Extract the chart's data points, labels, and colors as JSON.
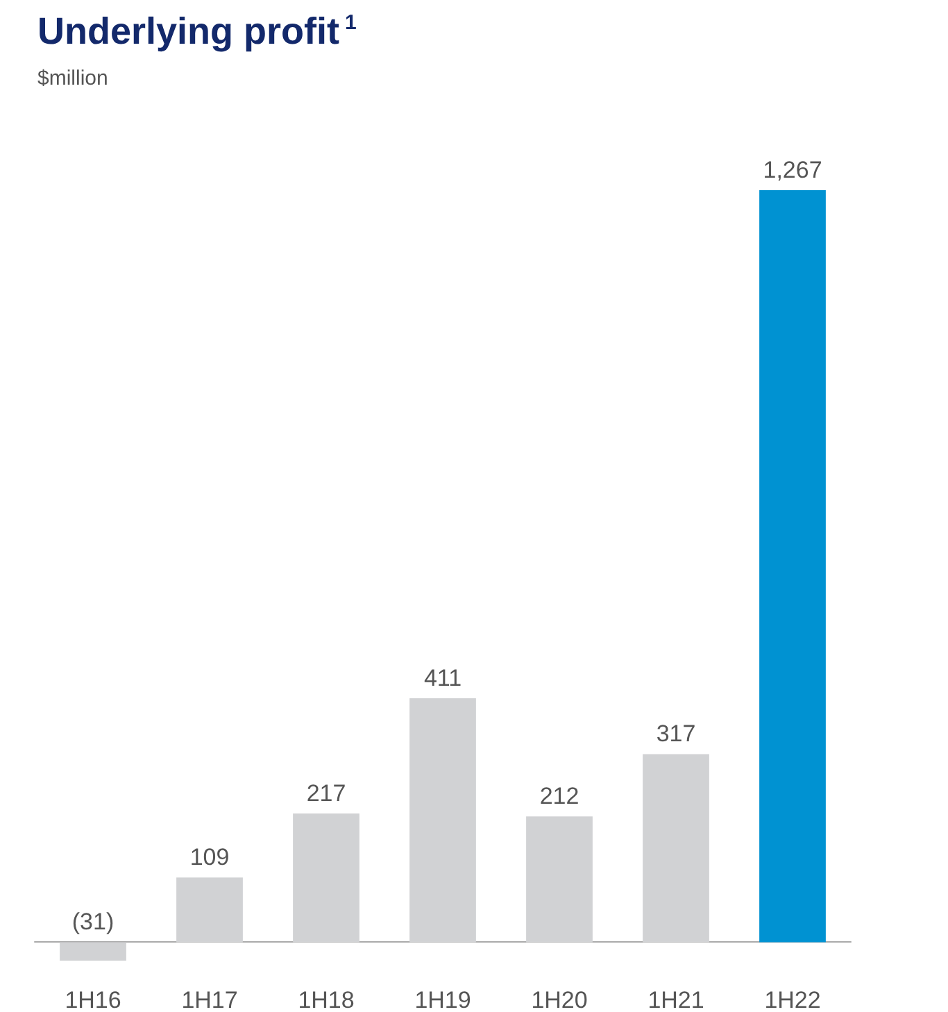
{
  "chart_data": {
    "type": "bar",
    "title": "Underlying profit$^{1}$",
    "subtitle": "$million",
    "categories": [
      "1H16",
      "1H17",
      "1H18",
      "1H19",
      "1H20",
      "1H21",
      "1H22"
    ],
    "values": [
      -31,
      109,
      217,
      411,
      212,
      317,
      1267
    ],
    "colors": [
      "#d1d2d4",
      "#d1d2d4",
      "#d1d2d4",
      "#d1d2d4",
      "#d1d2d4",
      "#d1d2d4",
      "#0092d2"
    ],
    "value_labels": [
      "(31)",
      "109",
      "217",
      "411",
      "212",
      "317",
      "1,267"
    ]
  }
}
